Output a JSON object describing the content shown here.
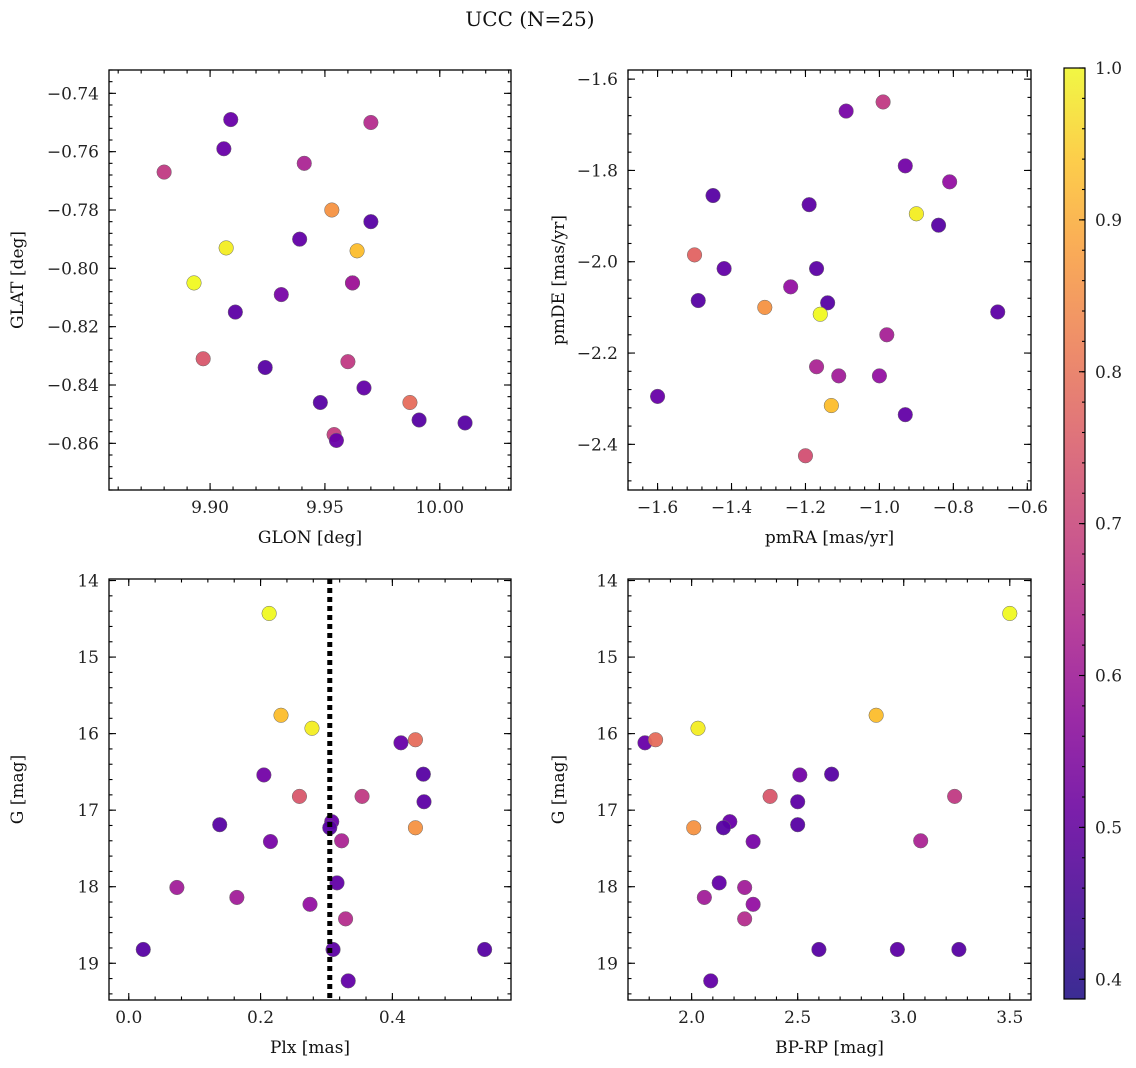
{
  "suptitle": "UCC (N=25)",
  "colorbar": {
    "range": [
      0.387,
      1.0
    ],
    "ticks": [
      0.4,
      0.5,
      0.6,
      0.7,
      0.8,
      0.9,
      1.0
    ],
    "tick_labels": [
      "0.4",
      "0.5",
      "0.6",
      "0.7",
      "0.8",
      "0.9",
      "1.0"
    ],
    "colormap": "plasma"
  },
  "chart_data": [
    {
      "type": "scatter",
      "id": "glon-glat",
      "xlabel": "GLON [deg]",
      "ylabel": "GLAT [deg]",
      "xlim": [
        9.856,
        10.031
      ],
      "ylim": [
        -0.876,
        -0.732
      ],
      "xticks": [
        9.9,
        9.95,
        10.0
      ],
      "xtick_labels": [
        "9.90",
        "9.95",
        "10.00"
      ],
      "yticks": [
        -0.74,
        -0.76,
        -0.78,
        -0.8,
        -0.82,
        -0.84,
        -0.86
      ],
      "ytick_labels": [
        "−0.74",
        "−0.76",
        "−0.78",
        "−0.80",
        "−0.82",
        "−0.84",
        "−0.86"
      ],
      "points": [
        {
          "x": 9.909,
          "y": -0.749,
          "c": 0.44
        },
        {
          "x": 9.97,
          "y": -0.75,
          "c": 0.59
        },
        {
          "x": 9.906,
          "y": -0.759,
          "c": 0.44
        },
        {
          "x": 9.941,
          "y": -0.764,
          "c": 0.57
        },
        {
          "x": 9.88,
          "y": -0.767,
          "c": 0.62
        },
        {
          "x": 9.953,
          "y": -0.78,
          "c": 0.82
        },
        {
          "x": 9.97,
          "y": -0.784,
          "c": 0.41
        },
        {
          "x": 9.939,
          "y": -0.79,
          "c": 0.43
        },
        {
          "x": 9.907,
          "y": -0.793,
          "c": 0.98
        },
        {
          "x": 9.964,
          "y": -0.794,
          "c": 0.9
        },
        {
          "x": 9.893,
          "y": -0.805,
          "c": 1.0
        },
        {
          "x": 9.962,
          "y": -0.805,
          "c": 0.51
        },
        {
          "x": 9.962,
          "y": -0.805,
          "c": 0.55
        },
        {
          "x": 9.931,
          "y": -0.809,
          "c": 0.47
        },
        {
          "x": 9.911,
          "y": -0.815,
          "c": 0.42
        },
        {
          "x": 9.897,
          "y": -0.831,
          "c": 0.69
        },
        {
          "x": 9.96,
          "y": -0.832,
          "c": 0.62
        },
        {
          "x": 9.924,
          "y": -0.834,
          "c": 0.41
        },
        {
          "x": 9.967,
          "y": -0.841,
          "c": 0.43
        },
        {
          "x": 9.948,
          "y": -0.846,
          "c": 0.41
        },
        {
          "x": 9.987,
          "y": -0.846,
          "c": 0.74
        },
        {
          "x": 9.954,
          "y": -0.857,
          "c": 0.63
        },
        {
          "x": 9.991,
          "y": -0.852,
          "c": 0.41
        },
        {
          "x": 10.011,
          "y": -0.853,
          "c": 0.41
        },
        {
          "x": 9.955,
          "y": -0.859,
          "c": 0.44
        }
      ]
    },
    {
      "type": "scatter",
      "id": "pmra-pmde",
      "xlabel": "pmRA [mas/yr]",
      "ylabel": "pmDE [mas/yr]",
      "xlim": [
        -1.68,
        -0.59
      ],
      "ylim": [
        -2.5,
        -1.58
      ],
      "xticks": [
        -1.6,
        -1.4,
        -1.2,
        -1.0,
        -0.8,
        -0.6
      ],
      "xtick_labels": [
        "−1.6",
        "−1.4",
        "−1.2",
        "−1.0",
        "−0.8",
        "−0.6"
      ],
      "yticks": [
        -1.6,
        -1.8,
        -2.0,
        -2.2,
        -2.4
      ],
      "ytick_labels": [
        "−1.6",
        "−1.8",
        "−2.0",
        "−2.2",
        "−2.4"
      ],
      "points": [
        {
          "x": -0.99,
          "y": -1.65,
          "c": 0.62
        },
        {
          "x": -1.09,
          "y": -1.67,
          "c": 0.47
        },
        {
          "x": -0.93,
          "y": -1.79,
          "c": 0.46
        },
        {
          "x": -0.81,
          "y": -1.825,
          "c": 0.52
        },
        {
          "x": -1.45,
          "y": -1.855,
          "c": 0.41
        },
        {
          "x": -1.19,
          "y": -1.875,
          "c": 0.42
        },
        {
          "x": -0.9,
          "y": -1.895,
          "c": 0.98
        },
        {
          "x": -0.84,
          "y": -1.92,
          "c": 0.41
        },
        {
          "x": -1.5,
          "y": -1.985,
          "c": 0.72
        },
        {
          "x": -1.42,
          "y": -2.015,
          "c": 0.43
        },
        {
          "x": -1.17,
          "y": -2.015,
          "c": 0.42
        },
        {
          "x": -1.24,
          "y": -2.055,
          "c": 0.52
        },
        {
          "x": -1.49,
          "y": -2.085,
          "c": 0.41
        },
        {
          "x": -1.14,
          "y": -2.09,
          "c": 0.41
        },
        {
          "x": -1.31,
          "y": -2.1,
          "c": 0.82
        },
        {
          "x": -1.16,
          "y": -2.115,
          "c": 1.0
        },
        {
          "x": -0.68,
          "y": -2.11,
          "c": 0.42
        },
        {
          "x": -0.98,
          "y": -2.16,
          "c": 0.56
        },
        {
          "x": -1.17,
          "y": -2.23,
          "c": 0.57
        },
        {
          "x": -1.11,
          "y": -2.25,
          "c": 0.55
        },
        {
          "x": -1.0,
          "y": -2.25,
          "c": 0.52
        },
        {
          "x": -1.6,
          "y": -2.295,
          "c": 0.44
        },
        {
          "x": -1.13,
          "y": -2.315,
          "c": 0.9
        },
        {
          "x": -0.93,
          "y": -2.335,
          "c": 0.43
        },
        {
          "x": -1.2,
          "y": -2.425,
          "c": 0.67
        }
      ]
    },
    {
      "type": "scatter",
      "id": "plx-g",
      "xlabel": "Plx [mas]",
      "ylabel": "G [mag]",
      "xlim": [
        -0.03,
        0.58
      ],
      "ylim": [
        19.48,
        13.98
      ],
      "xticks": [
        0.0,
        0.2,
        0.4
      ],
      "xtick_labels": [
        "0.0",
        "0.2",
        "0.4"
      ],
      "yticks": [
        14,
        15,
        16,
        17,
        18,
        19
      ],
      "ytick_labels": [
        "14",
        "15",
        "16",
        "17",
        "18",
        "19"
      ],
      "vline": 0.305,
      "points": [
        {
          "x": 0.213,
          "y": 14.43,
          "c": 1.0
        },
        {
          "x": 0.231,
          "y": 15.76,
          "c": 0.9
        },
        {
          "x": 0.278,
          "y": 15.93,
          "c": 0.98
        },
        {
          "x": 0.413,
          "y": 16.12,
          "c": 0.44
        },
        {
          "x": 0.435,
          "y": 16.08,
          "c": 0.74
        },
        {
          "x": 0.205,
          "y": 16.54,
          "c": 0.46
        },
        {
          "x": 0.447,
          "y": 16.53,
          "c": 0.41
        },
        {
          "x": 0.259,
          "y": 16.82,
          "c": 0.69
        },
        {
          "x": 0.354,
          "y": 16.82,
          "c": 0.62
        },
        {
          "x": 0.448,
          "y": 16.89,
          "c": 0.42
        },
        {
          "x": 0.138,
          "y": 17.19,
          "c": 0.41
        },
        {
          "x": 0.308,
          "y": 17.15,
          "c": 0.44
        },
        {
          "x": 0.305,
          "y": 17.23,
          "c": 0.41
        },
        {
          "x": 0.435,
          "y": 17.23,
          "c": 0.82
        },
        {
          "x": 0.215,
          "y": 17.41,
          "c": 0.47
        },
        {
          "x": 0.323,
          "y": 17.4,
          "c": 0.57
        },
        {
          "x": 0.073,
          "y": 18.01,
          "c": 0.55
        },
        {
          "x": 0.316,
          "y": 17.95,
          "c": 0.43
        },
        {
          "x": 0.164,
          "y": 18.14,
          "c": 0.55
        },
        {
          "x": 0.275,
          "y": 18.23,
          "c": 0.52
        },
        {
          "x": 0.329,
          "y": 18.42,
          "c": 0.59
        },
        {
          "x": 0.022,
          "y": 18.82,
          "c": 0.41
        },
        {
          "x": 0.31,
          "y": 18.82,
          "c": 0.42
        },
        {
          "x": 0.54,
          "y": 18.82,
          "c": 0.41
        },
        {
          "x": 0.333,
          "y": 19.23,
          "c": 0.43
        }
      ]
    },
    {
      "type": "scatter",
      "id": "bprp-g",
      "xlabel": "BP-RP [mag]",
      "ylabel": "G [mag]",
      "xlim": [
        1.7,
        3.6
      ],
      "ylim": [
        19.48,
        13.98
      ],
      "xticks": [
        2.0,
        2.5,
        3.0,
        3.5
      ],
      "xtick_labels": [
        "2.0",
        "2.5",
        "3.0",
        "3.5"
      ],
      "yticks": [
        14,
        15,
        16,
        17,
        18,
        19
      ],
      "ytick_labels": [
        "14",
        "15",
        "16",
        "17",
        "18",
        "19"
      ],
      "points": [
        {
          "x": 3.5,
          "y": 14.43,
          "c": 1.0
        },
        {
          "x": 2.87,
          "y": 15.76,
          "c": 0.9
        },
        {
          "x": 2.03,
          "y": 15.93,
          "c": 0.98
        },
        {
          "x": 1.78,
          "y": 16.12,
          "c": 0.44
        },
        {
          "x": 1.83,
          "y": 16.08,
          "c": 0.74
        },
        {
          "x": 2.51,
          "y": 16.54,
          "c": 0.46
        },
        {
          "x": 2.66,
          "y": 16.53,
          "c": 0.41
        },
        {
          "x": 2.37,
          "y": 16.82,
          "c": 0.69
        },
        {
          "x": 3.24,
          "y": 16.82,
          "c": 0.62
        },
        {
          "x": 2.5,
          "y": 16.89,
          "c": 0.42
        },
        {
          "x": 2.5,
          "y": 17.19,
          "c": 0.41
        },
        {
          "x": 2.18,
          "y": 17.15,
          "c": 0.44
        },
        {
          "x": 2.15,
          "y": 17.23,
          "c": 0.41
        },
        {
          "x": 2.01,
          "y": 17.23,
          "c": 0.82
        },
        {
          "x": 2.29,
          "y": 17.41,
          "c": 0.47
        },
        {
          "x": 3.08,
          "y": 17.4,
          "c": 0.57
        },
        {
          "x": 2.25,
          "y": 18.01,
          "c": 0.55
        },
        {
          "x": 2.13,
          "y": 17.95,
          "c": 0.43
        },
        {
          "x": 2.06,
          "y": 18.14,
          "c": 0.55
        },
        {
          "x": 2.29,
          "y": 18.23,
          "c": 0.52
        },
        {
          "x": 2.25,
          "y": 18.42,
          "c": 0.59
        },
        {
          "x": 2.6,
          "y": 18.82,
          "c": 0.41
        },
        {
          "x": 2.97,
          "y": 18.82,
          "c": 0.42
        },
        {
          "x": 3.26,
          "y": 18.82,
          "c": 0.41
        },
        {
          "x": 2.09,
          "y": 19.23,
          "c": 0.43
        }
      ]
    }
  ]
}
